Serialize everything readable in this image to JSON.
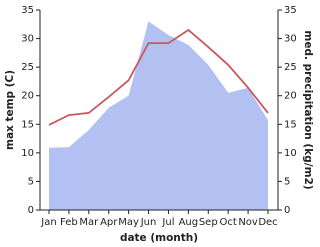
{
  "chart_data": {
    "type": "line-area",
    "x_label": "date (month)",
    "y_label": "max temp (C)",
    "y2_label": "med. precipitation (kg/m2)",
    "categories": [
      "Jan",
      "Feb",
      "Mar",
      "Apr",
      "May",
      "Jun",
      "Jul",
      "Aug",
      "Sep",
      "Oct",
      "Nov",
      "Dec"
    ],
    "ylim": [
      0,
      35
    ],
    "yticks": [
      0,
      5,
      10,
      15,
      20,
      25,
      30,
      35
    ],
    "y2lim": [
      0,
      35
    ],
    "y2ticks": [
      0,
      5,
      10,
      15,
      20,
      25,
      30,
      35
    ],
    "series": [
      {
        "name": "med. precipitation",
        "type": "area",
        "axis": "y2",
        "color": "#b3c0f2",
        "values": [
          10.9,
          11,
          14,
          17.9,
          20,
          33,
          30.6,
          28.9,
          25.4,
          20.5,
          21.4,
          15.7
        ]
      },
      {
        "name": "max temp",
        "type": "line",
        "color": "#c8585c",
        "values": [
          14.9,
          16.6,
          17,
          19.8,
          22.7,
          29.2,
          29.2,
          31.5,
          28.5,
          25.4,
          21.4,
          17
        ]
      }
    ]
  }
}
